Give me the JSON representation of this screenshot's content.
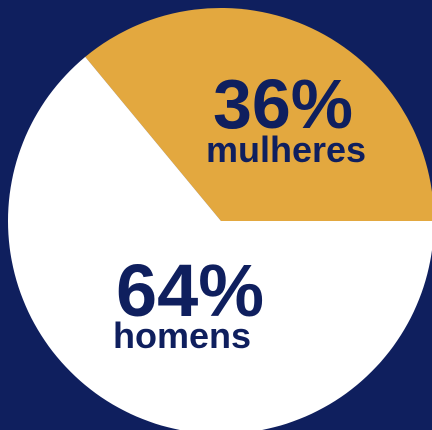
{
  "chart_data": {
    "type": "pie",
    "categories": [
      "mulheres",
      "homens"
    ],
    "values": [
      36,
      64
    ],
    "value_labels": [
      "36%",
      "64%"
    ],
    "colors": [
      "#e3a83f",
      "#ffffff"
    ]
  }
}
